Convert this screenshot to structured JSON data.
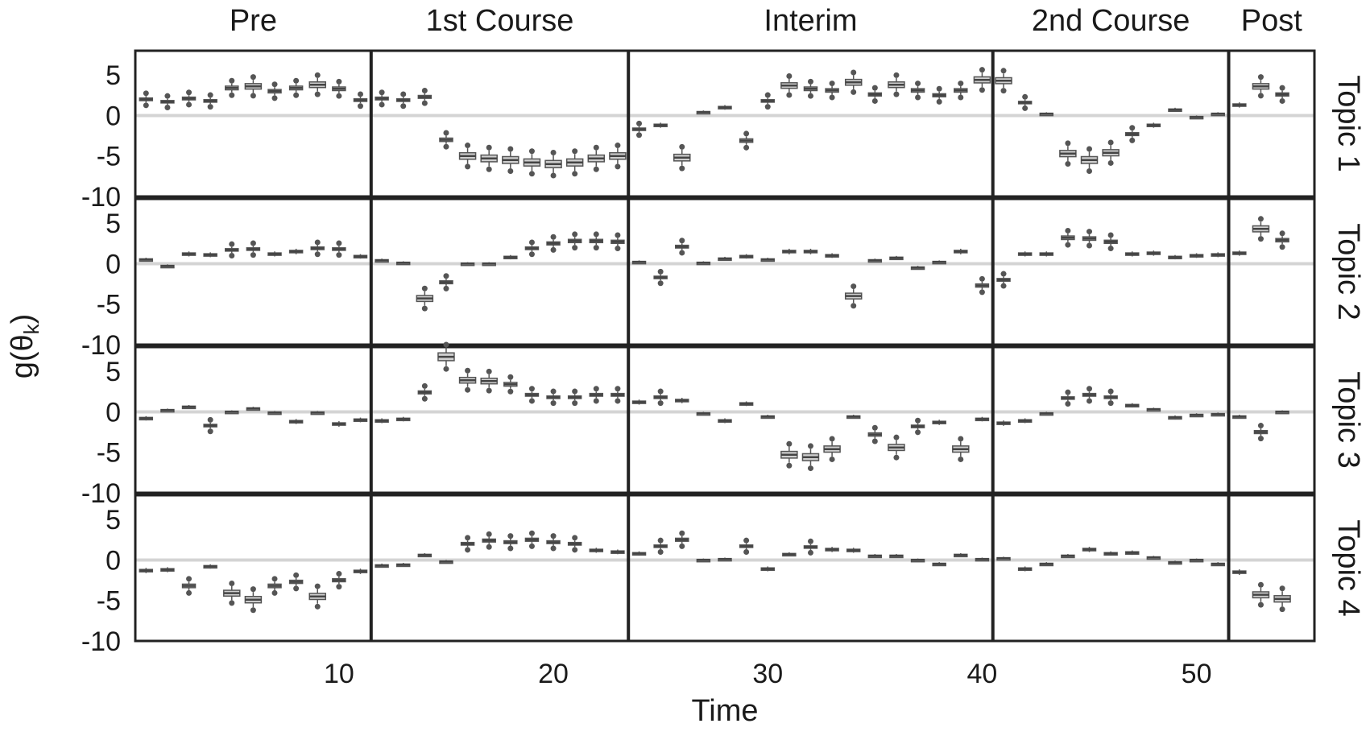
{
  "chart_data": {
    "type": "boxplot",
    "xlabel": "Time",
    "ylabel": "g(θ",
    "ylabel_sub": "k",
    "ylabel_close": ")",
    "x_range": [
      0.5,
      55.5
    ],
    "x_ticks": [
      10,
      20,
      30,
      40,
      50
    ],
    "y_range": [
      -10,
      8
    ],
    "y_ticks": [
      5,
      0,
      -5,
      -10
    ],
    "reference_line": 0,
    "phases": [
      {
        "name": "Pre",
        "start": 0.5,
        "end": 11.5
      },
      {
        "name": "1st Course",
        "start": 11.5,
        "end": 23.5
      },
      {
        "name": "Interim",
        "start": 23.5,
        "end": 40.5
      },
      {
        "name": "2nd Course",
        "start": 40.5,
        "end": 51.5
      },
      {
        "name": "Post",
        "start": 51.5,
        "end": 55.5
      }
    ],
    "rows": [
      {
        "label": "Topic 1",
        "medians": [
          2,
          1.7,
          2.1,
          1.8,
          3.4,
          3.6,
          3,
          3.4,
          3.8,
          3.3,
          1.9,
          2.1,
          1.9,
          2.3,
          -3,
          -5,
          -5.3,
          -5.5,
          -5.8,
          -6,
          -5.8,
          -5.3,
          -5,
          -1.7,
          -1.2,
          -5.2,
          0.4,
          1,
          -3.1,
          1.8,
          3.7,
          3.3,
          3.1,
          4.1,
          2.6,
          3.8,
          3.1,
          2.5,
          3.1,
          4.4,
          4.3,
          1.6,
          0.2,
          -4.7,
          -5.5,
          -4.6,
          -2.3,
          -1.2,
          0.7,
          -0.2,
          0.2,
          1.3,
          3.6,
          2.6
        ]
      },
      {
        "label": "Topic 2",
        "medians": [
          0.5,
          -0.3,
          1.2,
          1.1,
          1.7,
          1.8,
          1.2,
          1.5,
          1.9,
          1.8,
          0.9,
          0.4,
          0.1,
          -4.3,
          -2.3,
          0,
          0,
          0.8,
          1.9,
          2.5,
          2.8,
          2.8,
          2.7,
          0.2,
          -1.7,
          2.1,
          0.1,
          0.6,
          0.9,
          0.5,
          1.5,
          1.5,
          1,
          -4,
          0.4,
          0.7,
          -0.5,
          0.2,
          1.5,
          -2.7,
          -2,
          1.2,
          1.2,
          3.2,
          3.1,
          2.7,
          1.2,
          1.3,
          0.8,
          1,
          1.1,
          1.3,
          4.3,
          2.9
        ]
      },
      {
        "label": "Topic 3",
        "medians": [
          -0.8,
          0.2,
          0.6,
          -1.7,
          0,
          0.4,
          -0.1,
          -1.2,
          -0.1,
          -1.5,
          -1,
          -1.1,
          -0.9,
          2.4,
          6.8,
          3.9,
          3.8,
          3.4,
          2.1,
          1.8,
          1.8,
          2.1,
          2.1,
          1.2,
          1.8,
          1.4,
          -0.2,
          -1.1,
          1,
          -0.6,
          -5.3,
          -5.6,
          -4.6,
          -0.6,
          -2.8,
          -4.4,
          -1.8,
          -1.3,
          -4.6,
          -0.9,
          -1.4,
          -1.1,
          -0.2,
          1.7,
          2.1,
          1.8,
          0.8,
          0.3,
          -0.7,
          -0.4,
          -0.3,
          -0.6,
          -2.5,
          0
        ]
      },
      {
        "label": "Topic 4",
        "medians": [
          -1.3,
          -1.2,
          -3.2,
          -0.8,
          -4.1,
          -4.9,
          -3.2,
          -2.7,
          -4.5,
          -2.5,
          -1.4,
          -0.7,
          -0.6,
          0.6,
          -0.2,
          2,
          2.4,
          2.2,
          2.5,
          2.2,
          2,
          1.2,
          1,
          0.8,
          1.7,
          2.5,
          0,
          0.1,
          1.7,
          -1.1,
          0.7,
          1.6,
          1.3,
          1.2,
          0.5,
          0.5,
          0,
          -0.5,
          0.6,
          0.1,
          0.2,
          -1.1,
          -0.5,
          0.5,
          1.3,
          0.8,
          0.9,
          0.3,
          -0.3,
          0,
          -0.5,
          -1.5,
          -4.3,
          -4.8
        ]
      }
    ]
  }
}
